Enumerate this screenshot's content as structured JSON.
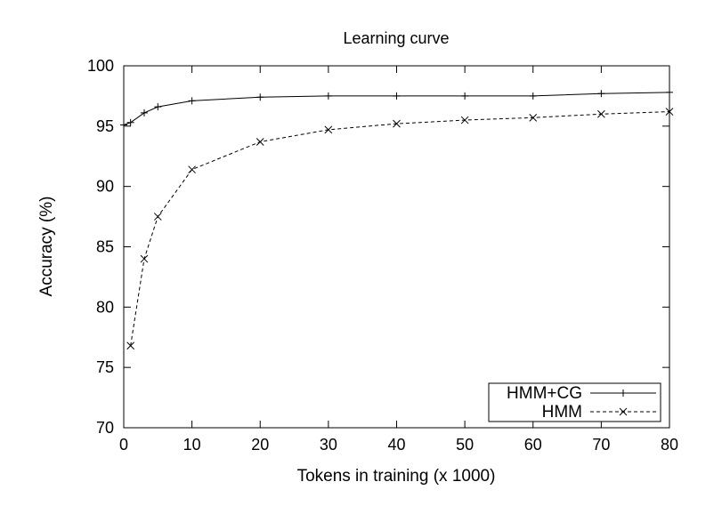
{
  "chart_data": {
    "type": "line",
    "title": "Learning curve",
    "xlabel": "Tokens in training (x 1000)",
    "ylabel": "Accuracy (%)",
    "xlim": [
      0,
      80
    ],
    "ylim": [
      70,
      100
    ],
    "xticks": [
      0,
      10,
      20,
      30,
      40,
      50,
      60,
      70,
      80
    ],
    "yticks": [
      70,
      75,
      80,
      85,
      90,
      95,
      100
    ],
    "grid": false,
    "legend_position": "bottom-right",
    "series": [
      {
        "name": "HMM+CG",
        "marker": "plus",
        "line_style": "solid",
        "color": "#000000",
        "x": [
          0,
          1,
          3,
          5,
          10,
          20,
          30,
          40,
          50,
          60,
          70,
          80
        ],
        "y": [
          95.1,
          95.3,
          96.1,
          96.6,
          97.1,
          97.4,
          97.5,
          97.5,
          97.5,
          97.5,
          97.7,
          97.8
        ]
      },
      {
        "name": "HMM",
        "marker": "cross",
        "line_style": "dashed",
        "color": "#000000",
        "x": [
          1,
          3,
          5,
          10,
          20,
          30,
          40,
          50,
          60,
          70,
          80
        ],
        "y": [
          76.8,
          84.0,
          87.5,
          91.4,
          93.7,
          94.7,
          95.2,
          95.5,
          95.7,
          96.0,
          96.2
        ]
      }
    ]
  }
}
